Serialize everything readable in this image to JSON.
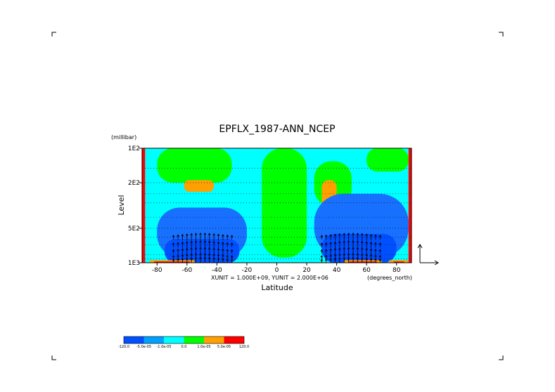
{
  "chart_data": {
    "type": "heatmap",
    "title": "EPFLX_1987-ANN_NCEP",
    "xlabel": "Latitude",
    "xunit_label": "(degrees_north)",
    "ylabel": "Level",
    "yunit_label": "(millibar)",
    "vector_scale_label": "XUNIT = 1.000E+09, YUNIT = 2.000E+06",
    "x_ticks": [
      -80,
      -60,
      -40,
      -20,
      0,
      20,
      40,
      60,
      80
    ],
    "y_ticks": [
      "1E2",
      "2E2",
      "5E2",
      "1E3"
    ],
    "xlim": [
      -90,
      90
    ],
    "ylim_mb": [
      1000,
      100
    ],
    "y_scale": "log",
    "grid": "horizontal dotted lines at each pressure level",
    "colorbar": {
      "levels": [
        "-120.0",
        "-5.0e-05",
        "-1.0e-05",
        "0.0",
        "1.0e-05",
        "5.0e-05",
        "120.0"
      ],
      "colors": [
        "#0050ff",
        "#00a0ff",
        "#00ffff",
        "#00ff00",
        "#ffa000",
        "#ff0000"
      ]
    },
    "regions": [
      {
        "value_class": "cyan",
        "desc": "background"
      },
      {
        "value_class": "green",
        "lat": [
          -80,
          -30
        ],
        "p": [
          100,
          200
        ]
      },
      {
        "value_class": "orange",
        "lat": [
          -62,
          -42
        ],
        "p": [
          190,
          240
        ]
      },
      {
        "value_class": "green",
        "lat": [
          -10,
          20
        ],
        "p": [
          100,
          900
        ]
      },
      {
        "value_class": "green",
        "lat": [
          25,
          50
        ],
        "p": [
          130,
          320
        ]
      },
      {
        "value_class": "orange",
        "lat": [
          30,
          40
        ],
        "p": [
          190,
          390
        ]
      },
      {
        "value_class": "green",
        "lat": [
          60,
          88
        ],
        "p": [
          100,
          160
        ]
      },
      {
        "value_class": "blue",
        "lat": [
          -80,
          -20
        ],
        "p": [
          330,
          900
        ]
      },
      {
        "value_class": "blue",
        "lat": [
          25,
          88
        ],
        "p": [
          250,
          900
        ]
      },
      {
        "value_class": "darkblue",
        "lat": [
          -75,
          -25
        ],
        "p": [
          620,
          1000
        ]
      },
      {
        "value_class": "darkblue",
        "lat": [
          30,
          80
        ],
        "p": [
          560,
          1000
        ]
      },
      {
        "value_class": "red",
        "lat": [
          -90,
          -88
        ],
        "p": [
          100,
          1000
        ]
      },
      {
        "value_class": "red",
        "lat": [
          88,
          90
        ],
        "p": [
          100,
          1000
        ]
      }
    ],
    "vectors": {
      "lat_range": [
        -78,
        78
      ],
      "lat_step": 3,
      "levels_mb": [
        600,
        700,
        800,
        900,
        970
      ],
      "direction": "mostly upward, strongest in mid-latitude storm tracks (~-50 and ~50)"
    }
  }
}
